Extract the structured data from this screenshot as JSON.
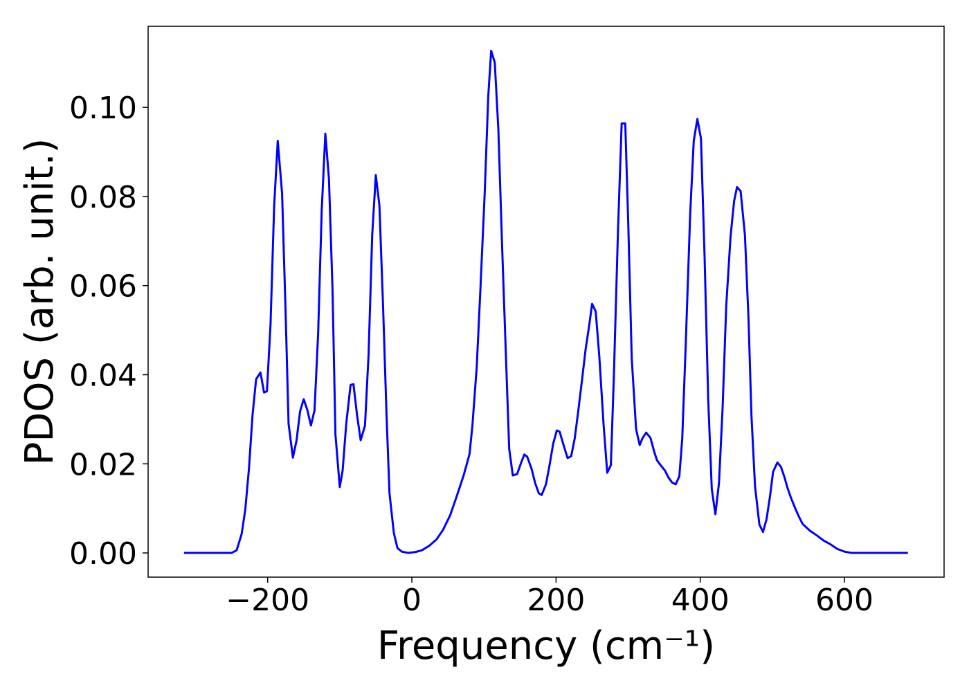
{
  "chart_data": {
    "type": "line",
    "xlabel": "Frequency (cm⁻¹)",
    "ylabel": "PDOS (arb. unit.)",
    "color": "#0000ff",
    "xlim": [
      -365.8,
      738.2
    ],
    "ylim": [
      -0.00543,
      0.1182
    ],
    "xticks": [
      {
        "value": -200,
        "label": "−200"
      },
      0,
      200,
      400,
      600
    ],
    "yticks": [
      {
        "value": 0,
        "label": "0.00"
      },
      {
        "value": 0.02,
        "label": "0.02"
      },
      {
        "value": 0.04,
        "label": "0.04"
      },
      {
        "value": 0.06,
        "label": "0.06"
      },
      {
        "value": 0.08,
        "label": "0.08"
      },
      {
        "value": 0.1,
        "label": "0.10"
      }
    ],
    "x": [
      -316,
      -250,
      -243,
      -236,
      -231,
      -226,
      -221,
      -216,
      -210,
      -205,
      -201,
      -196,
      -191,
      -186,
      -180,
      -175,
      -171,
      -165,
      -160,
      -155,
      -150,
      -145,
      -140,
      -135,
      -130,
      -125,
      -120,
      -115,
      -110,
      -106,
      -100,
      -96,
      -91,
      -85,
      -81,
      -76,
      -71,
      -65,
      -60,
      -55,
      -50,
      -45,
      -40,
      -35,
      -31,
      -25,
      -20,
      -14,
      -5,
      5,
      14,
      24,
      34,
      43,
      53,
      62,
      72,
      80,
      84,
      90,
      95,
      101,
      106,
      110,
      115,
      120,
      125,
      131,
      135,
      140,
      146,
      151,
      156,
      160,
      166,
      171,
      176,
      180,
      186,
      191,
      196,
      201,
      205,
      211,
      216,
      221,
      226,
      231,
      236,
      241,
      246,
      250,
      255,
      260,
      266,
      271,
      276,
      280,
      286,
      291,
      296,
      300,
      305,
      311,
      316,
      320,
      325,
      331,
      336,
      340,
      345,
      351,
      356,
      361,
      366,
      371,
      375,
      380,
      386,
      391,
      396,
      401,
      406,
      411,
      416,
      421,
      426,
      431,
      436,
      442,
      447,
      451,
      456,
      462,
      467,
      471,
      476,
      482,
      487,
      492,
      497,
      501,
      507,
      512,
      517,
      521,
      526,
      532,
      537,
      542,
      552,
      562,
      571,
      581,
      590,
      600,
      610,
      688
    ],
    "values": [
      0,
      0,
      0.0006,
      0.0043,
      0.0098,
      0.0188,
      0.0309,
      0.039,
      0.0405,
      0.036,
      0.0363,
      0.0514,
      0.0778,
      0.0925,
      0.0807,
      0.0534,
      0.029,
      0.0214,
      0.0252,
      0.0318,
      0.0345,
      0.0321,
      0.0286,
      0.032,
      0.0492,
      0.077,
      0.0941,
      0.084,
      0.0589,
      0.0266,
      0.0148,
      0.0185,
      0.029,
      0.0377,
      0.0379,
      0.0309,
      0.0253,
      0.0286,
      0.0446,
      0.0713,
      0.0848,
      0.078,
      0.0557,
      0.0304,
      0.0134,
      0.0045,
      0.0011,
      0.0003,
      0,
      0.0002,
      0.0006,
      0.0016,
      0.003,
      0.0051,
      0.0084,
      0.0126,
      0.0175,
      0.0222,
      0.0286,
      0.0418,
      0.0589,
      0.0806,
      0.1026,
      0.1127,
      0.1101,
      0.095,
      0.0697,
      0.0418,
      0.0234,
      0.0174,
      0.0177,
      0.02,
      0.0221,
      0.0216,
      0.0189,
      0.0157,
      0.0134,
      0.013,
      0.0154,
      0.0197,
      0.0245,
      0.0275,
      0.0272,
      0.0239,
      0.0213,
      0.0217,
      0.0258,
      0.0321,
      0.0388,
      0.0457,
      0.0511,
      0.0559,
      0.0542,
      0.0441,
      0.0286,
      0.018,
      0.0197,
      0.0387,
      0.0728,
      0.0964,
      0.0964,
      0.0748,
      0.0436,
      0.0278,
      0.0242,
      0.0258,
      0.027,
      0.0258,
      0.0228,
      0.0208,
      0.0197,
      0.0185,
      0.0169,
      0.0158,
      0.0154,
      0.0172,
      0.0256,
      0.0474,
      0.0759,
      0.0925,
      0.0974,
      0.093,
      0.0666,
      0.0346,
      0.0143,
      0.0087,
      0.0157,
      0.0325,
      0.0553,
      0.071,
      0.079,
      0.0821,
      0.0812,
      0.0713,
      0.0523,
      0.0309,
      0.0149,
      0.0064,
      0.0047,
      0.0076,
      0.013,
      0.0182,
      0.0203,
      0.0193,
      0.0169,
      0.0146,
      0.0123,
      0.0099,
      0.0081,
      0.0065,
      0.005,
      0.0039,
      0.0028,
      0.0019,
      0.0009,
      0.0003,
      0,
      0
    ]
  }
}
